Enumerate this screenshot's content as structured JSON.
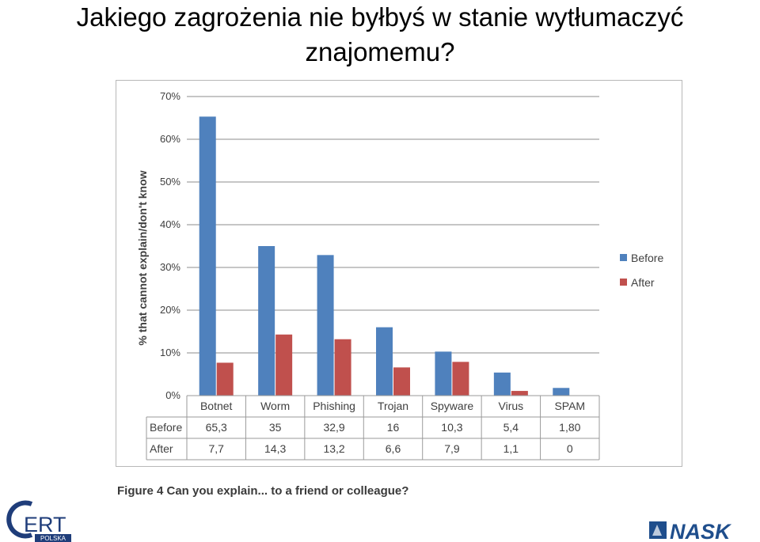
{
  "slide": {
    "title_line1": "Jakiego zagrożenia nie byłbyś w stanie wytłumaczyć",
    "title_line2": "znajomemu?"
  },
  "caption": "Figure 4 Can you explain... to a friend or colleague?",
  "logos": {
    "cert": {
      "big": "CERT",
      "sub": "POLSKA"
    },
    "nask": {
      "text": "NASK"
    }
  },
  "colors": {
    "before": "#4F81BD",
    "after": "#C0504D",
    "grid": "#8c8c8c",
    "text": "#404040"
  },
  "chart_data": {
    "type": "bar",
    "categories": [
      "Botnet",
      "Worm",
      "Phishing",
      "Trojan",
      "Spyware",
      "Virus",
      "SPAM"
    ],
    "series": [
      {
        "name": "Before",
        "values": [
          65.3,
          35,
          32.9,
          16,
          10.3,
          5.4,
          1.8
        ],
        "labels": [
          "65,3",
          "35",
          "32,9",
          "16",
          "10,3",
          "5,4",
          "1,80"
        ]
      },
      {
        "name": "After",
        "values": [
          7.7,
          14.3,
          13.2,
          6.6,
          7.9,
          1.1,
          0
        ],
        "labels": [
          "7,7",
          "14,3",
          "13,2",
          "6,6",
          "7,9",
          "1,1",
          "0"
        ]
      }
    ],
    "yticks": [
      "0%",
      "10%",
      "20%",
      "30%",
      "40%",
      "50%",
      "60%",
      "70%"
    ],
    "ylabel": "% that cannot explain/don't know",
    "ylim": [
      0,
      70
    ],
    "grid": true,
    "legend": "right",
    "data_table": true
  }
}
